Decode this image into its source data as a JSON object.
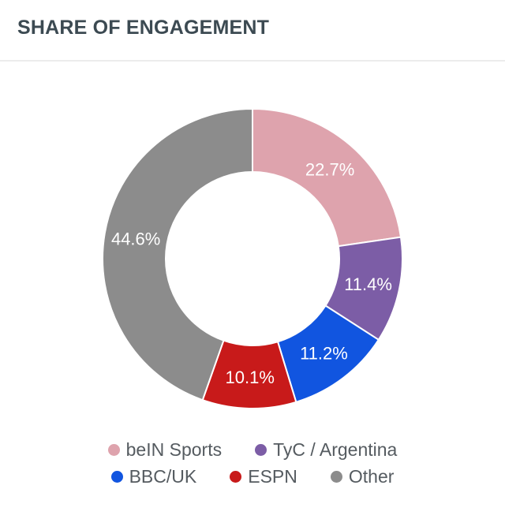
{
  "title": "SHARE OF ENGAGEMENT",
  "chart_data": {
    "type": "pie",
    "variant": "donut",
    "categories": [
      "beIN Sports",
      "TyC / Argentina",
      "BBC/UK",
      "ESPN",
      "Other"
    ],
    "values": [
      22.7,
      11.4,
      11.2,
      10.1,
      44.6
    ],
    "labels": [
      "22.7%",
      "11.4%",
      "11.2%",
      "10.1%",
      "44.6%"
    ],
    "colors": [
      "#dea3ad",
      "#7c5da6",
      "#1155e0",
      "#c81a1a",
      "#8c8c8c"
    ],
    "legend_position": "bottom"
  },
  "legend": {
    "rows": [
      [
        {
          "label": "beIN Sports",
          "color": "#dea3ad"
        },
        {
          "label": "TyC / Argentina",
          "color": "#7c5da6"
        }
      ],
      [
        {
          "label": "BBC/UK",
          "color": "#1155e0"
        },
        {
          "label": "ESPN",
          "color": "#c81a1a"
        },
        {
          "label": "Other",
          "color": "#8c8c8c"
        }
      ]
    ]
  }
}
